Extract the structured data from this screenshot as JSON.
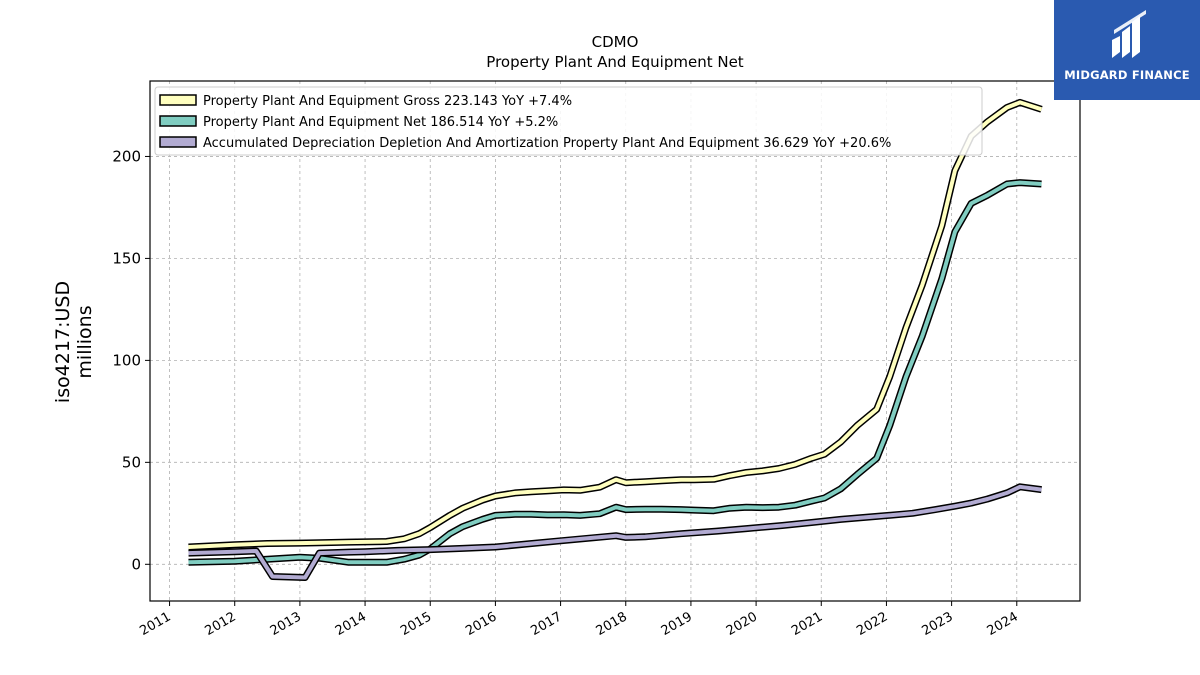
{
  "chart_data": {
    "type": "line",
    "title": "CDMO",
    "subtitle": "Property Plant And Equipment Net",
    "ylabel_line1": "iso4217:USD",
    "ylabel_line2": "millions",
    "xlim": [
      2010.7,
      2024.97
    ],
    "ylim": [
      -18,
      237
    ],
    "x_ticks": [
      2011,
      2012,
      2013,
      2014,
      2015,
      2016,
      2017,
      2018,
      2019,
      2020,
      2021,
      2022,
      2023,
      2024
    ],
    "x_tick_labels": [
      "2011",
      "2012",
      "2013",
      "2014",
      "2015",
      "2016",
      "2017",
      "2018",
      "2019",
      "2020",
      "2021",
      "2022",
      "2023",
      "2024"
    ],
    "y_ticks": [
      0,
      50,
      100,
      150,
      200
    ],
    "y_tick_labels": [
      "0",
      "50",
      "100",
      "150",
      "200"
    ],
    "grid": true,
    "legend_position": "top-left",
    "series": [
      {
        "name": "Property Plant And Equipment Gross",
        "legend_label": "Property Plant And Equipment Gross  223.143 YoY +7.4%",
        "color": "#ffffbf",
        "x": [
          2011.29,
          2012.0,
          2012.5,
          2013.0,
          2013.3,
          2013.75,
          2014.0,
          2014.33,
          2014.6,
          2014.83,
          2015.0,
          2015.3,
          2015.5,
          2015.8,
          2016.0,
          2016.3,
          2016.55,
          2016.8,
          2017.05,
          2017.3,
          2017.6,
          2017.85,
          2018.0,
          2018.3,
          2018.55,
          2018.85,
          2019.05,
          2019.35,
          2019.6,
          2019.85,
          2020.1,
          2020.35,
          2020.6,
          2020.85,
          2021.05,
          2021.3,
          2021.55,
          2021.85,
          2022.05,
          2022.3,
          2022.55,
          2022.85,
          2023.05,
          2023.3,
          2023.55,
          2023.85,
          2024.05,
          2024.38
        ],
        "values": [
          8.5,
          9.6,
          10.2,
          10.4,
          10.6,
          10.9,
          11.0,
          11.2,
          12.5,
          15.0,
          18.0,
          24.0,
          27.5,
          31.5,
          33.5,
          35.0,
          35.6,
          36.0,
          36.5,
          36.3,
          37.8,
          41.5,
          40.0,
          40.5,
          41.0,
          41.5,
          41.5,
          41.7,
          43.5,
          45.0,
          45.8,
          47.0,
          49.0,
          52.0,
          54.0,
          60.0,
          68.0,
          76.0,
          92.0,
          116.0,
          137.0,
          166.0,
          193.0,
          210.0,
          217.0,
          224.0,
          226.5,
          223.143
        ]
      },
      {
        "name": "Property Plant And Equipment Net",
        "legend_label": "Property Plant And Equipment Net  186.514 YoY +5.2%",
        "color": "#80cdc1",
        "x": [
          2011.29,
          2012.0,
          2012.5,
          2013.0,
          2013.3,
          2013.75,
          2014.0,
          2014.33,
          2014.6,
          2014.83,
          2015.0,
          2015.3,
          2015.5,
          2015.8,
          2016.0,
          2016.3,
          2016.55,
          2016.8,
          2017.05,
          2017.3,
          2017.6,
          2017.85,
          2018.0,
          2018.3,
          2018.55,
          2018.85,
          2019.05,
          2019.35,
          2019.6,
          2019.85,
          2020.1,
          2020.35,
          2020.6,
          2020.85,
          2021.05,
          2021.3,
          2021.55,
          2021.85,
          2022.05,
          2022.3,
          2022.55,
          2022.85,
          2023.05,
          2023.3,
          2023.55,
          2023.85,
          2024.05,
          2024.38
        ],
        "values": [
          1.0,
          1.5,
          2.5,
          3.5,
          3.0,
          1.0,
          1.0,
          1.0,
          2.5,
          4.5,
          7.5,
          15.0,
          18.5,
          22.0,
          24.0,
          24.5,
          24.5,
          24.2,
          24.3,
          24.0,
          24.8,
          28.0,
          26.8,
          27.0,
          27.0,
          26.8,
          26.6,
          26.3,
          27.5,
          28.0,
          27.8,
          28.0,
          29.0,
          31.0,
          32.5,
          37.0,
          44.0,
          52.0,
          68.0,
          92.0,
          112.0,
          140.0,
          163.0,
          177.0,
          181.0,
          186.5,
          187.2,
          186.514
        ]
      },
      {
        "name": "Accumulated Depreciation Depletion And Amortization Property Plant And Equipment",
        "legend_label": "Accumulated Depreciation Depletion And Amortization Property Plant And Equipment  36.629 YoY +20.6%",
        "color": "#b2abd2",
        "x": [
          2011.29,
          2012.0,
          2012.33,
          2012.58,
          2013.08,
          2013.3,
          2013.75,
          2014.0,
          2014.5,
          2015.0,
          2015.5,
          2016.0,
          2016.5,
          2017.0,
          2017.5,
          2017.85,
          2018.0,
          2018.3,
          2018.85,
          2019.4,
          2019.85,
          2020.4,
          2020.85,
          2021.3,
          2021.85,
          2022.4,
          2022.75,
          2023.05,
          2023.3,
          2023.55,
          2023.85,
          2024.05,
          2024.38
        ],
        "values": [
          5.5,
          6.2,
          6.5,
          -6.0,
          -6.5,
          5.5,
          6.0,
          6.2,
          6.8,
          7.2,
          7.8,
          8.5,
          10.0,
          11.5,
          13.0,
          14.0,
          13.2,
          13.5,
          15.0,
          16.3,
          17.5,
          19.0,
          20.5,
          22.0,
          23.5,
          25.0,
          26.8,
          28.5,
          30.0,
          32.0,
          35.0,
          38.0,
          36.629
        ]
      }
    ]
  },
  "logo": {
    "name": "MIDGARD FINANCE",
    "background": "#2a5ab0"
  }
}
